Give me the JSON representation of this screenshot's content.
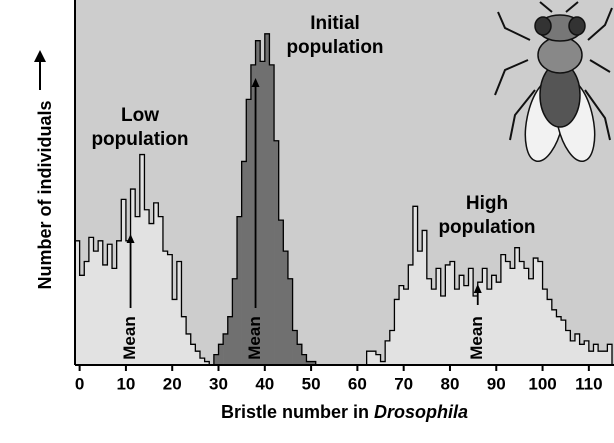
{
  "chart_data": {
    "type": "histogram",
    "y_label": "Number of individuals",
    "x_label": "Bristle number in",
    "x_label_species": "Drosophila",
    "xlim": [
      -1,
      115
    ],
    "xticks": [
      0,
      10,
      20,
      30,
      40,
      50,
      60,
      70,
      80,
      90,
      100,
      110
    ],
    "ylim": [
      0,
      100
    ],
    "series": [
      {
        "name": "Low population",
        "color": "#e2e2e2",
        "mean": 11,
        "mean_label": "Mean",
        "bins": [
          -1,
          0,
          1,
          2,
          3,
          4,
          5,
          6,
          7,
          8,
          9,
          10,
          11,
          12,
          13,
          14,
          15,
          16,
          17,
          18,
          19,
          20,
          21,
          22,
          23,
          24,
          25,
          26,
          27,
          28
        ],
        "values": [
          36,
          26,
          30,
          37,
          33,
          36,
          29,
          35,
          28,
          36,
          48,
          36,
          51,
          43,
          61,
          45,
          41,
          47,
          43,
          33,
          32,
          19,
          30,
          14,
          9,
          6,
          4,
          2,
          1
        ]
      },
      {
        "name": "Initial population",
        "color": "#707070",
        "mean": 38,
        "mean_label": "Mean",
        "bins": [
          29,
          30,
          31,
          32,
          33,
          34,
          35,
          36,
          37,
          38,
          39,
          40,
          41,
          42,
          43,
          44,
          45,
          46,
          47,
          48,
          49,
          50,
          51
        ],
        "values": [
          3,
          6,
          9,
          14,
          25,
          43,
          59,
          77,
          87,
          94,
          88,
          96,
          87,
          65,
          42,
          33,
          25,
          10,
          6,
          3,
          1,
          1
        ]
      },
      {
        "name": "High population",
        "color": "#e2e2e2",
        "mean": 86,
        "mean_label": "Mean",
        "bins": [
          62,
          63,
          64,
          65,
          66,
          67,
          68,
          69,
          70,
          71,
          72,
          73,
          74,
          75,
          76,
          77,
          78,
          79,
          80,
          81,
          82,
          83,
          84,
          85,
          86,
          87,
          88,
          89,
          90,
          91,
          92,
          93,
          94,
          95,
          96,
          97,
          98,
          99,
          100,
          101,
          102,
          103,
          104,
          105,
          106,
          107,
          108,
          109,
          110,
          111,
          112,
          113,
          114,
          115
        ],
        "values": [
          4,
          4,
          3,
          1,
          7,
          10,
          19,
          23,
          22,
          29,
          46,
          33,
          39,
          25,
          22,
          28,
          20,
          29,
          30,
          22,
          26,
          23,
          28,
          20,
          24,
          28,
          22,
          26,
          24,
          32,
          30,
          28,
          34,
          30,
          28,
          25,
          31,
          30,
          22,
          19,
          16,
          14,
          13,
          10,
          7,
          9,
          6,
          7,
          4,
          6,
          4,
          4,
          6
        ]
      }
    ]
  }
}
